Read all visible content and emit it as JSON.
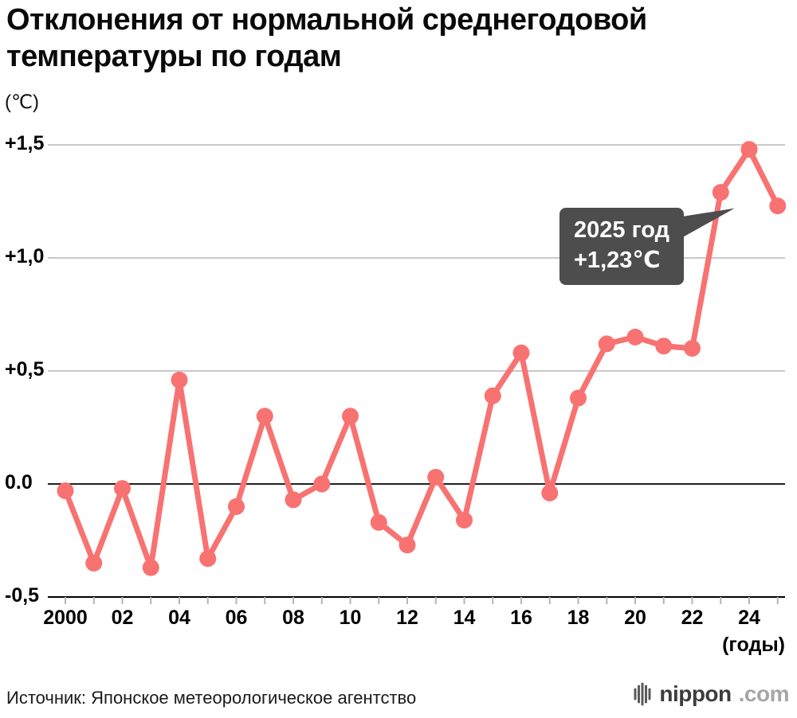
{
  "title": {
    "line1": "Отклонения от нормальной среднегодовой",
    "line2": "температуры по годам"
  },
  "unit_label": "(℃)",
  "axis": {
    "x_label": "(годы)"
  },
  "tooltip": {
    "line1": "2025 год",
    "line2": "+1,23℃"
  },
  "source": "Источник: Японское метеорологическое агентство",
  "logo": {
    "name": "nippon",
    "tld": ".com"
  },
  "colors": {
    "line": "#f87272",
    "grid": "#c9c9c9",
    "axis": "#000000",
    "tick": "#b5b5b5",
    "tooltip_bg": "#4d4d4d"
  },
  "chart_data": {
    "type": "line",
    "title": "Отклонения от нормальной среднегодовой температуры по годам",
    "xlabel": "(годы)",
    "ylabel": "(℃)",
    "ylim": [
      -0.5,
      1.5
    ],
    "grid": true,
    "legend": "none",
    "x": [
      2000,
      2001,
      2002,
      2003,
      2004,
      2005,
      2006,
      2007,
      2008,
      2009,
      2010,
      2011,
      2012,
      2013,
      2014,
      2015,
      2016,
      2017,
      2018,
      2019,
      2020,
      2021,
      2022,
      2023,
      2024,
      2025
    ],
    "values": [
      -0.03,
      -0.35,
      -0.02,
      -0.37,
      0.46,
      -0.33,
      -0.1,
      0.3,
      -0.07,
      0.0,
      0.3,
      -0.17,
      -0.27,
      0.03,
      -0.16,
      0.39,
      0.58,
      -0.04,
      0.38,
      0.62,
      0.65,
      0.61,
      0.6,
      1.29,
      1.48,
      1.23
    ],
    "y_ticks": [
      {
        "v": 1.5,
        "label": "+1,5"
      },
      {
        "v": 1.0,
        "label": "+1,0"
      },
      {
        "v": 0.5,
        "label": "+0,5"
      },
      {
        "v": 0.0,
        "label": "0.0"
      },
      {
        "v": -0.5,
        "label": "-0,5"
      }
    ],
    "x_ticks": [
      {
        "v": 2000,
        "label": "2000"
      },
      {
        "v": 2002,
        "label": "02"
      },
      {
        "v": 2004,
        "label": "04"
      },
      {
        "v": 2006,
        "label": "06"
      },
      {
        "v": 2008,
        "label": "08"
      },
      {
        "v": 2010,
        "label": "10"
      },
      {
        "v": 2012,
        "label": "12"
      },
      {
        "v": 2014,
        "label": "14"
      },
      {
        "v": 2016,
        "label": "16"
      },
      {
        "v": 2018,
        "label": "18"
      },
      {
        "v": 2020,
        "label": "20"
      },
      {
        "v": 2022,
        "label": "22"
      },
      {
        "v": 2024,
        "label": "24"
      }
    ],
    "annotation": {
      "x": 2025,
      "value": 1.23,
      "text": [
        "2025 год",
        "+1,23℃"
      ]
    }
  }
}
